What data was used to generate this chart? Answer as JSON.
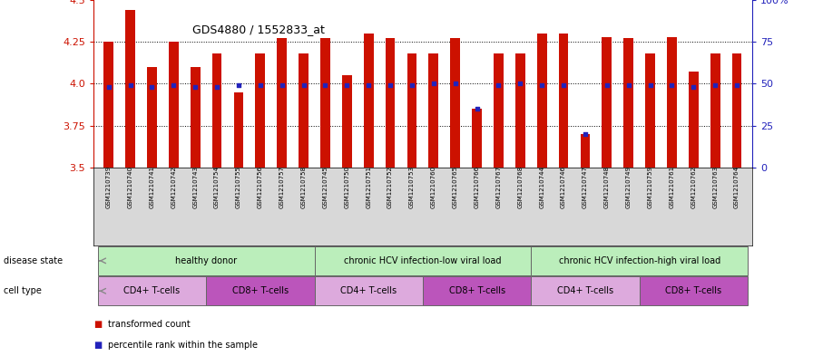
{
  "title": "GDS4880 / 1552833_at",
  "samples": [
    "GSM1210739",
    "GSM1210740",
    "GSM1210741",
    "GSM1210742",
    "GSM1210743",
    "GSM1210754",
    "GSM1210755",
    "GSM1210756",
    "GSM1210757",
    "GSM1210758",
    "GSM1210745",
    "GSM1210750",
    "GSM1210751",
    "GSM1210752",
    "GSM1210753",
    "GSM1210760",
    "GSM1210765",
    "GSM1210766",
    "GSM1210767",
    "GSM1210768",
    "GSM1210744",
    "GSM1210746",
    "GSM1210747",
    "GSM1210748",
    "GSM1210749",
    "GSM1210759",
    "GSM1210761",
    "GSM1210762",
    "GSM1210763",
    "GSM1210764"
  ],
  "transformed_count": [
    4.25,
    4.44,
    4.1,
    4.25,
    4.1,
    4.18,
    3.95,
    4.18,
    4.27,
    4.18,
    4.27,
    4.05,
    4.3,
    4.27,
    4.18,
    4.18,
    4.27,
    3.85,
    4.18,
    4.18,
    4.3,
    4.3,
    3.7,
    4.28,
    4.27,
    4.18,
    4.28,
    4.07,
    4.18,
    4.18
  ],
  "percentile_rank": [
    48,
    49,
    48,
    49,
    48,
    48,
    49,
    49,
    49,
    49,
    49,
    49,
    49,
    49,
    49,
    50,
    50,
    35,
    49,
    50,
    49,
    49,
    20,
    49,
    49,
    49,
    49,
    48,
    49,
    49
  ],
  "ylim": [
    3.5,
    4.5
  ],
  "yticks": [
    3.5,
    3.75,
    4.0,
    4.25,
    4.5
  ],
  "right_yticks": [
    0,
    25,
    50,
    75,
    100
  ],
  "bar_color": "#cc1100",
  "dot_color": "#2222bb",
  "plot_bg": "#ffffff",
  "label_band_bg": "#d8d8d8",
  "disease_groups": [
    {
      "label": "healthy donor",
      "start": 0,
      "end": 9,
      "color": "#bbeebb"
    },
    {
      "label": "chronic HCV infection-low viral load",
      "start": 10,
      "end": 19,
      "color": "#bbeebb"
    },
    {
      "label": "chronic HCV infection-high viral load",
      "start": 20,
      "end": 29,
      "color": "#bbeebb"
    }
  ],
  "cell_type_groups": [
    {
      "label": "CD4+ T-cells",
      "start": 0,
      "end": 4,
      "color": "#ddaadd"
    },
    {
      "label": "CD8+ T-cells",
      "start": 5,
      "end": 9,
      "color": "#bb55bb"
    },
    {
      "label": "CD4+ T-cells",
      "start": 10,
      "end": 14,
      "color": "#ddaadd"
    },
    {
      "label": "CD8+ T-cells",
      "start": 15,
      "end": 19,
      "color": "#bb55bb"
    },
    {
      "label": "CD4+ T-cells",
      "start": 20,
      "end": 24,
      "color": "#ddaadd"
    },
    {
      "label": "CD8+ T-cells",
      "start": 25,
      "end": 29,
      "color": "#bb55bb"
    }
  ],
  "disease_state_label": "disease state",
  "cell_type_label": "cell type",
  "legend_red_label": "transformed count",
  "legend_blue_label": "percentile rank within the sample"
}
